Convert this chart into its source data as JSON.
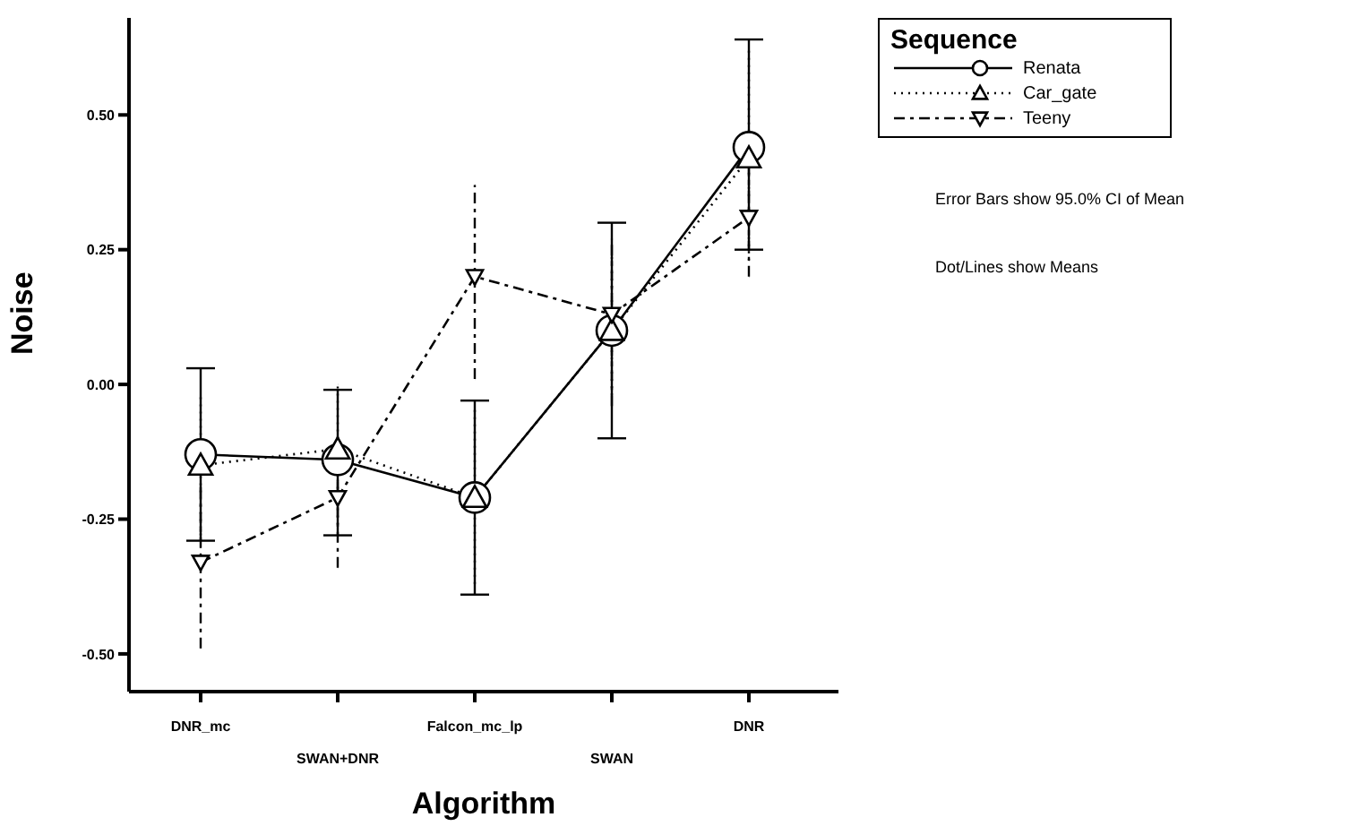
{
  "chart_data": {
    "type": "line",
    "xlabel": "Algorithm",
    "ylabel": "Noise",
    "legend_title": "Sequence",
    "legend": "top right",
    "grid": false,
    "categories": [
      "DNR_mc",
      "SWAN+DNR",
      "Falcon_mc_lp",
      "SWAN",
      "DNR"
    ],
    "ylim": [
      -0.57,
      0.68
    ],
    "yticks": [
      {
        "value": -0.5,
        "label": "-0.50"
      },
      {
        "value": -0.25,
        "label": "-0.25"
      },
      {
        "value": 0,
        "label": "0.00"
      },
      {
        "value": 0.25,
        "label": "0.25"
      },
      {
        "value": 0.5,
        "label": "0.50"
      }
    ],
    "series": [
      {
        "name": "Renata",
        "color": "#000000",
        "marker": "circle",
        "line_style": "solid",
        "values": [
          -0.13,
          -0.14,
          -0.21,
          0.1,
          0.44
        ],
        "errors": [
          [
            -0.29,
            0.03
          ],
          [
            -0.28,
            -0.01
          ],
          [
            -0.39,
            -0.03
          ],
          [
            -0.1,
            0.3
          ],
          [
            0.25,
            0.64
          ]
        ]
      },
      {
        "name": "Car_gate",
        "color": "#000000",
        "marker": "triangle",
        "line_style": "dotted",
        "values": [
          -0.15,
          -0.12,
          -0.21,
          0.1,
          0.42
        ],
        "errors": [
          [
            -0.28,
            -0.02
          ],
          [
            -0.26,
            0.0
          ],
          [
            -0.37,
            -0.04
          ],
          [
            -0.02,
            0.24
          ],
          [
            0.23,
            0.62
          ]
        ]
      },
      {
        "name": "Teeny",
        "color": "#000000",
        "marker": "triangle-down",
        "line_style": "dashed",
        "values": [
          -0.33,
          -0.21,
          0.2,
          0.13,
          0.31
        ],
        "errors": [
          [
            -0.49,
            -0.19
          ],
          [
            -0.34,
            -0.11
          ],
          [
            0.01,
            0.37
          ],
          [
            -0.04,
            0.27
          ],
          [
            0.2,
            0.41
          ]
        ]
      }
    ],
    "annotations": [
      "Error Bars show 95.0% CI of Mean",
      "Dot/Lines show Means"
    ]
  }
}
